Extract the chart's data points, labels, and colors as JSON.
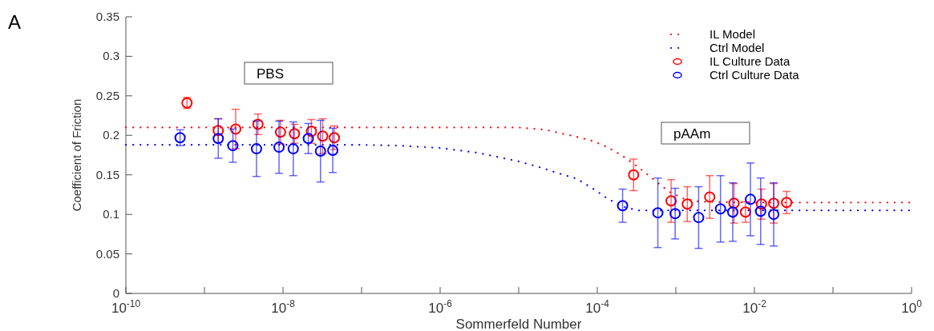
{
  "chart_data": {
    "type": "scatter",
    "xlabel": "Sommerfeld Number",
    "ylabel": "Coefficient of Friction",
    "log": "x",
    "xlim": [
      1e-10,
      1
    ],
    "ylim": [
      0,
      0.35
    ],
    "xticks": [
      {
        "value": 1e-10,
        "label": "10$^{-10}$"
      },
      {
        "value": 1e-09,
        "label": null
      },
      {
        "value": 1e-08,
        "label": "10$^{-8}$"
      },
      {
        "value": 1e-07,
        "label": null
      },
      {
        "value": 1e-06,
        "label": "10$^{-6}$"
      },
      {
        "value": 1e-05,
        "label": null
      },
      {
        "value": 0.0001,
        "label": "10$^{-4}$"
      },
      {
        "value": 0.001,
        "label": null
      },
      {
        "value": 0.01,
        "label": "10$^{-2}$"
      },
      {
        "value": 0.1,
        "label": null
      },
      {
        "value": 1,
        "label": "10$^{0}$"
      }
    ],
    "yticks": [
      0,
      0.05,
      0.1,
      0.15,
      0.2,
      0.25,
      0.3,
      0.35
    ],
    "grid": false,
    "legend": "top right",
    "annotations": [
      "A",
      "PBS",
      "pAAm"
    ],
    "series": [
      {
        "name": "IL Model",
        "type": "line",
        "line_style": "dotted",
        "marker": "none",
        "color": "#ff0000",
        "x": [
          1e-10,
          1e-05,
          2.2e-05,
          5.5e-05,
          8.7e-05,
          0.000135,
          0.00021,
          0.00033,
          0.00051,
          0.00081,
          0.00126,
          0.002,
          0.01,
          1
        ],
        "values": [
          0.21,
          0.21,
          0.207,
          0.198,
          0.193,
          0.185,
          0.174,
          0.16,
          0.145,
          0.129,
          0.12,
          0.116,
          0.115,
          0.115
        ]
      },
      {
        "name": "Ctrl Model",
        "type": "line",
        "line_style": "dotted",
        "marker": "none",
        "color": "#0000ff",
        "x": [
          1e-10,
          1e-07,
          3e-07,
          1e-06,
          3e-06,
          1e-05,
          1.8e-05,
          3.2e-05,
          5.5e-05,
          8.7e-05,
          0.000135,
          0.00021,
          0.00033,
          0.001,
          1
        ],
        "values": [
          0.188,
          0.188,
          0.187,
          0.184,
          0.178,
          0.167,
          0.16,
          0.152,
          0.145,
          0.133,
          0.12,
          0.11,
          0.105,
          0.105,
          0.105
        ]
      },
      {
        "name": "IL Culture Data",
        "marker": "circle",
        "color": "#ff0000",
        "x": [
          6e-10,
          1.5e-09,
          2.5e-09,
          4.8e-09,
          9.3e-09,
          1.4e-08,
          2.3e-08,
          3.2e-08,
          4.5e-08,
          0.00029,
          0.00087,
          0.0014,
          0.0027,
          0.0055,
          0.0077,
          0.0123,
          0.0176,
          0.0257
        ],
        "values": [
          0.241,
          0.206,
          0.208,
          0.214,
          0.204,
          0.202,
          0.205,
          0.199,
          0.197,
          0.15,
          0.117,
          0.113,
          0.122,
          0.114,
          0.103,
          0.113,
          0.114,
          0.115
        ],
        "errors": [
          0.007,
          0.015,
          0.025,
          0.013,
          0.015,
          0.012,
          0.015,
          0.022,
          0.015,
          0.02,
          0.027,
          0.022,
          0.027,
          0.025,
          0.013,
          0.019,
          0.025,
          0.014
        ]
      },
      {
        "name": "Ctrl Culture Data",
        "marker": "circle",
        "color": "#0000ff",
        "x": [
          4.9e-10,
          1.5e-09,
          2.3e-09,
          4.6e-09,
          8.9e-09,
          1.35e-08,
          2.1e-08,
          3e-08,
          4.3e-08,
          0.00021,
          0.00059,
          0.00098,
          0.00195,
          0.0037,
          0.0053,
          0.0089,
          0.012,
          0.0176
        ],
        "values": [
          0.197,
          0.196,
          0.187,
          0.183,
          0.185,
          0.183,
          0.196,
          0.18,
          0.181,
          0.111,
          0.102,
          0.101,
          0.096,
          0.107,
          0.103,
          0.119,
          0.104,
          0.1
        ],
        "errors": [
          0.01,
          0.025,
          0.021,
          0.035,
          0.033,
          0.034,
          0.019,
          0.039,
          0.028,
          0.021,
          0.044,
          0.032,
          0.039,
          0.042,
          0.037,
          0.046,
          0.042,
          0.04
        ]
      }
    ]
  }
}
